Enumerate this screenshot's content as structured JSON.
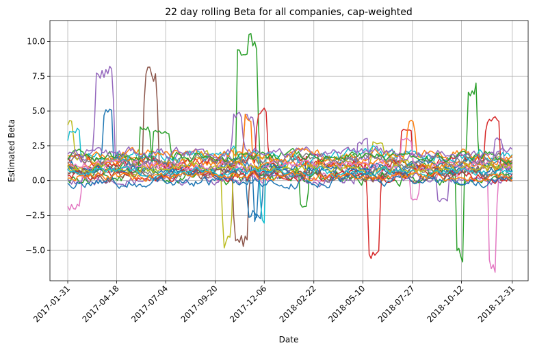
{
  "chart_data": {
    "type": "line",
    "title": "22 day rolling Beta for all companies, cap-weighted",
    "xlabel": "Date",
    "ylabel": "Estimated Beta",
    "x_ticks": [
      "2017-01-31",
      "2017-04-18",
      "2017-07-04",
      "2017-09-20",
      "2017-12-06",
      "2018-02-22",
      "2018-05-10",
      "2018-07-27",
      "2018-10-12",
      "2018-12-31"
    ],
    "y_ticks": [
      -5.0,
      -2.5,
      0.0,
      2.5,
      5.0,
      7.5,
      10.0
    ],
    "y_tick_labels": [
      "−5.0",
      "−2.5",
      "0.0",
      "2.5",
      "5.0",
      "7.5",
      "10.0"
    ],
    "xlim": [
      "2017-01-03",
      "2019-01-25"
    ],
    "ylim": [
      -7.2,
      11.5
    ],
    "grid": true,
    "legend": "none",
    "line_width": 1.5,
    "series_colors": [
      "#1f77b4",
      "#ff7f0e",
      "#2ca02c",
      "#d62728",
      "#9467bd",
      "#8c564b",
      "#e377c2",
      "#7f7f7f",
      "#bcbd22",
      "#17becf"
    ],
    "series": [
      {
        "color": "#2ca02c",
        "base": 0.9,
        "spread": 0.6,
        "events": [
          [
            "2017-10-25",
            "2017-11-25",
            9.8
          ],
          [
            "2018-02-01",
            "2018-02-12",
            -1.8
          ],
          [
            "2018-10-05",
            "2018-10-14",
            -5.3
          ],
          [
            "2018-10-22",
            "2018-11-05",
            6.6
          ]
        ]
      },
      {
        "color": "#9467bd",
        "base": 1.4,
        "spread": 0.7,
        "events": [
          [
            "2017-03-16",
            "2017-04-12",
            7.8
          ],
          [
            "2017-11-05",
            "2017-11-20",
            4.6
          ],
          [
            "2018-12-03",
            "2018-12-15",
            3.0
          ]
        ]
      },
      {
        "color": "#8c564b",
        "base": 0.8,
        "spread": 0.6,
        "events": [
          [
            "2017-06-01",
            "2017-06-20",
            7.6
          ],
          [
            "2017-10-20",
            "2017-11-10",
            -4.3
          ]
        ]
      },
      {
        "color": "#bcbd22",
        "base": 1.6,
        "spread": 0.6,
        "events": [
          [
            "2017-01-31",
            "2017-02-08",
            4.2
          ],
          [
            "2017-10-02",
            "2017-10-15",
            -4.4
          ],
          [
            "2018-05-25",
            "2018-06-10",
            2.7
          ]
        ]
      },
      {
        "color": "#d62728",
        "base": 1.3,
        "spread": 0.6,
        "events": [
          [
            "2017-11-25",
            "2017-12-10",
            4.9
          ],
          [
            "2018-05-19",
            "2018-06-05",
            -5.1
          ],
          [
            "2018-07-10",
            "2018-07-25",
            3.6
          ],
          [
            "2018-11-20",
            "2018-12-10",
            4.4
          ]
        ]
      },
      {
        "color": "#e377c2",
        "base": 0.6,
        "spread": 0.7,
        "events": [
          [
            "2017-01-31",
            "2017-02-20",
            -1.9
          ],
          [
            "2018-11-25",
            "2018-12-05",
            -6.1
          ],
          [
            "2018-07-25",
            "2018-08-05",
            -1.4
          ]
        ]
      },
      {
        "color": "#1f77b4",
        "base": 1.0,
        "spread": 0.6,
        "events": [
          [
            "2017-03-28",
            "2017-04-10",
            4.8
          ],
          [
            "2017-11-20",
            "2017-12-02",
            -2.7
          ]
        ]
      },
      {
        "color": "#17becf",
        "base": 1.8,
        "spread": 0.6,
        "events": [
          [
            "2017-02-01",
            "2017-02-18",
            3.6
          ],
          [
            "2017-12-01",
            "2017-12-06",
            -2.8
          ]
        ]
      },
      {
        "color": "#ff7f0e",
        "base": 1.9,
        "spread": 0.5,
        "events": [
          [
            "2018-07-20",
            "2018-07-30",
            4.4
          ]
        ]
      },
      {
        "color": "#7f7f7f",
        "base": 0.5,
        "spread": 0.5,
        "events": []
      },
      {
        "color": "#2ca02c",
        "base": 0.2,
        "spread": 0.6,
        "events": [
          [
            "2017-05-25",
            "2017-06-10",
            3.6
          ]
        ]
      },
      {
        "color": "#9467bd",
        "base": 0.1,
        "spread": 0.5,
        "events": [
          [
            "2018-05-01",
            "2018-05-18",
            2.8
          ],
          [
            "2018-09-05",
            "2018-09-20",
            -1.4
          ]
        ]
      },
      {
        "color": "#d62728",
        "base": 0.3,
        "spread": 0.5,
        "events": [
          [
            "2018-02-10",
            "2018-03-01",
            1.8
          ]
        ]
      },
      {
        "color": "#1f77b4",
        "base": 0.7,
        "spread": 0.5,
        "events": [
          [
            "2017-11-10",
            "2017-11-25",
            -2.4
          ]
        ]
      },
      {
        "color": "#ff7f0e",
        "base": 1.2,
        "spread": 0.5,
        "events": [
          [
            "2017-11-05",
            "2017-11-15",
            4.5
          ]
        ]
      },
      {
        "color": "#8c564b",
        "base": 0.4,
        "spread": 0.6,
        "events": []
      },
      {
        "color": "#e377c2",
        "base": 1.1,
        "spread": 0.5,
        "events": [
          [
            "2018-07-10",
            "2018-07-25",
            2.9
          ]
        ]
      },
      {
        "color": "#bcbd22",
        "base": 0.9,
        "spread": 0.5,
        "events": []
      },
      {
        "color": "#17becf",
        "base": 0.6,
        "spread": 0.4,
        "events": []
      },
      {
        "color": "#7f7f7f",
        "base": 1.5,
        "spread": 0.5,
        "events": []
      },
      {
        "color": "#2ca02c",
        "base": 1.7,
        "spread": 0.5,
        "events": [
          [
            "2017-06-15",
            "2017-07-10",
            3.5
          ]
        ]
      },
      {
        "color": "#1f77b4",
        "base": 0.0,
        "spread": 0.5,
        "events": []
      },
      {
        "color": "#ff7f0e",
        "base": 0.3,
        "spread": 0.4,
        "events": []
      },
      {
        "color": "#9467bd",
        "base": 2.0,
        "spread": 0.5,
        "events": [
          [
            "2017-10-18",
            "2017-11-01",
            4.7
          ]
        ]
      }
    ]
  }
}
